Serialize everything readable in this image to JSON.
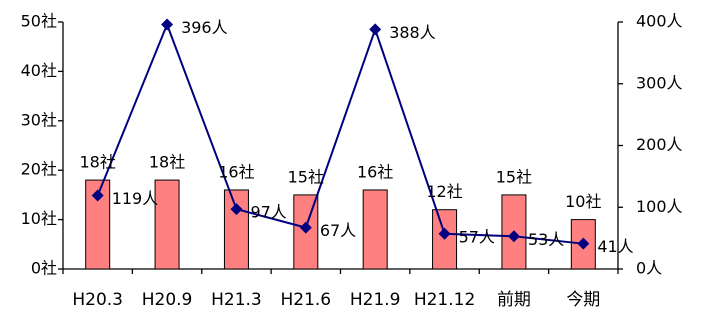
{
  "chart_data": {
    "type": "bar",
    "categories": [
      "H20.3",
      "H20.9",
      "H21.3",
      "H21.6",
      "H21.9",
      "H21.12",
      "前期",
      "今期"
    ],
    "series": [
      {
        "kind": "bar",
        "axis": "left",
        "values": [
          18,
          18,
          16,
          15,
          16,
          12,
          15,
          10
        ],
        "labels": [
          "18社",
          "18社",
          "16社",
          "15社",
          "16社",
          "12社",
          "15社",
          "10社"
        ],
        "color": "#ff8080",
        "edge": "#000000"
      },
      {
        "kind": "line",
        "axis": "right",
        "values": [
          119,
          396,
          97,
          67,
          388,
          57,
          53,
          41
        ],
        "labels": [
          "119人",
          "396人",
          "97人",
          "67人",
          "388人",
          "57人",
          "53人",
          "41人"
        ],
        "color": "#000080"
      }
    ],
    "y_left": {
      "ylim": [
        0,
        50
      ],
      "ticks": [
        "0社",
        "10社",
        "20社",
        "30社",
        "40社",
        "50社"
      ]
    },
    "y_right": {
      "ylim": [
        0,
        400
      ],
      "ticks": [
        "0人",
        "100人",
        "200人",
        "300人",
        "400人"
      ]
    },
    "grid": false,
    "legend": "none"
  }
}
